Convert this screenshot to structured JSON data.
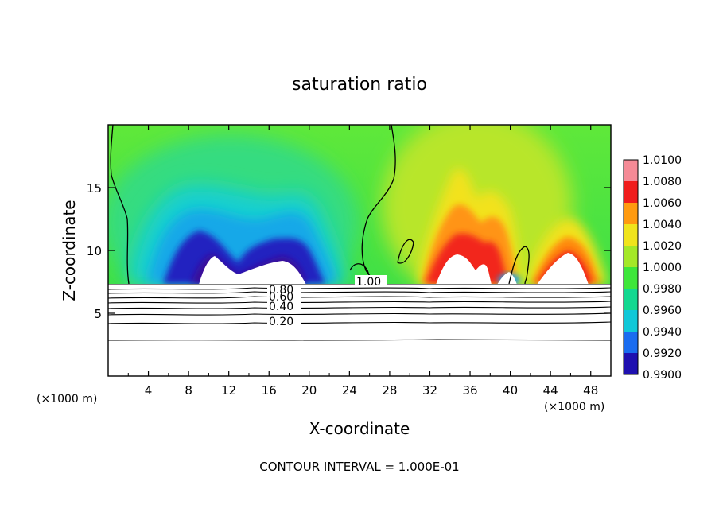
{
  "chart_data": {
    "type": "heatmap",
    "title": "saturation ratio",
    "xlabel": "X-coordinate",
    "ylabel": "Z-coordinate",
    "x_unit_left": "(×1000 m)",
    "x_unit_right": "(×1000 m)",
    "xlim": [
      0,
      50
    ],
    "ylim": [
      0,
      20
    ],
    "x_ticks": [
      4,
      8,
      12,
      16,
      20,
      24,
      28,
      32,
      36,
      40,
      44,
      48
    ],
    "y_ticks": [
      5,
      10,
      15
    ],
    "colorbar": {
      "levels": [
        "0.9900",
        "0.9920",
        "0.9940",
        "0.9960",
        "0.9980",
        "1.0000",
        "1.0020",
        "1.0040",
        "1.0060",
        "1.0080",
        "1.0100"
      ],
      "colors": [
        "#5a0a8c",
        "#1f10b0",
        "#1a6cf0",
        "#10c8d8",
        "#12d890",
        "#3ee63a",
        "#a4e828",
        "#f0e41c",
        "#ff9a10",
        "#f01c1c",
        "#f58a96"
      ]
    },
    "contour_labels": [
      {
        "text": "1.00",
        "x": 26.4,
        "y": 7.4
      },
      {
        "text": "0.80",
        "x": 17.6,
        "y": 6.9
      },
      {
        "text": "0.60",
        "x": 17.6,
        "y": 6.4
      },
      {
        "text": "0.40",
        "x": 17.6,
        "y": 5.6
      },
      {
        "text": "0.20",
        "x": 17.6,
        "y": 4.2
      }
    ],
    "footnote": "CONTOUR INTERVAL = 1.000E-01"
  }
}
